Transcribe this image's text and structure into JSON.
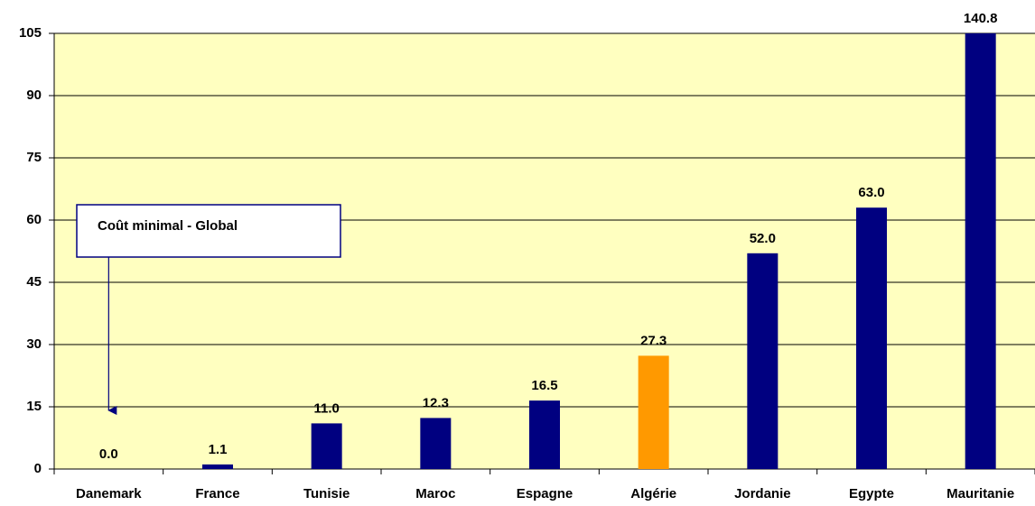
{
  "chart_data": {
    "type": "bar",
    "categories": [
      "Danemark",
      "France",
      "Tunisie",
      "Maroc",
      "Espagne",
      "Algérie",
      "Jordanie",
      "Egypte",
      "Mauritanie"
    ],
    "values": [
      0,
      1.1,
      11,
      12.3,
      16.5,
      27.3,
      52,
      63,
      140.8
    ],
    "value_labels": [
      "0.0",
      "1.1",
      "11.0",
      "12.3",
      "16.5",
      "27.3",
      "52.0",
      "63.0",
      "140.8"
    ],
    "colors": [
      "#000080",
      "#000080",
      "#000080",
      "#000080",
      "#000080",
      "#ff9900",
      "#000080",
      "#000080",
      "#000080"
    ],
    "ylim": [
      0,
      105
    ],
    "yticks": [
      0,
      15,
      30,
      45,
      60,
      75,
      90,
      105
    ],
    "grid": true,
    "annotation": {
      "text": "Coût minimal - Global",
      "category": 0
    }
  }
}
